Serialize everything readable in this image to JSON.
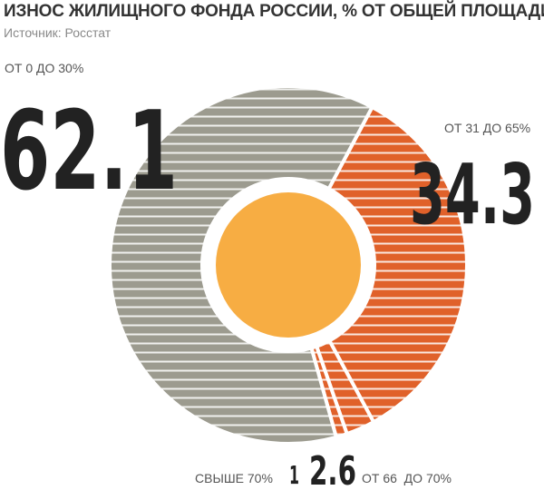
{
  "header": {
    "title": "ИЗНОС ЖИЛИЩНОГО ФОНДА РОССИИ, % ОТ ОБЩЕЙ ПЛОЩАДИ",
    "source": "Источник: Росстат"
  },
  "chart_data": {
    "type": "pie",
    "title": "ИЗНОС ЖИЛИЩНОГО ФОНДА РОССИИ, % ОТ ОБЩЕЙ ПЛОЩАДИ",
    "subtitle": "Источник: Росстат",
    "unit": "%",
    "slices": [
      {
        "label": "ОТ 0 ДО 30%",
        "value": 62.1,
        "value_label": "62.1",
        "color": "#9c9b8f"
      },
      {
        "label": "ОТ 31 ДО 65%",
        "value": 34.3,
        "value_label": "34.3",
        "color": "#e0612a"
      },
      {
        "label": "ОТ 66  ДО 70%",
        "value": 2.6,
        "value_label": "2.6",
        "color": "#e0612a"
      },
      {
        "label": "СВЫШЕ 70%",
        "value": 1,
        "value_label": "1",
        "color": "#e0612a"
      }
    ],
    "center_circle_color": "#f7ad43",
    "text_color": "#222222",
    "category_label_color": "#555555"
  }
}
